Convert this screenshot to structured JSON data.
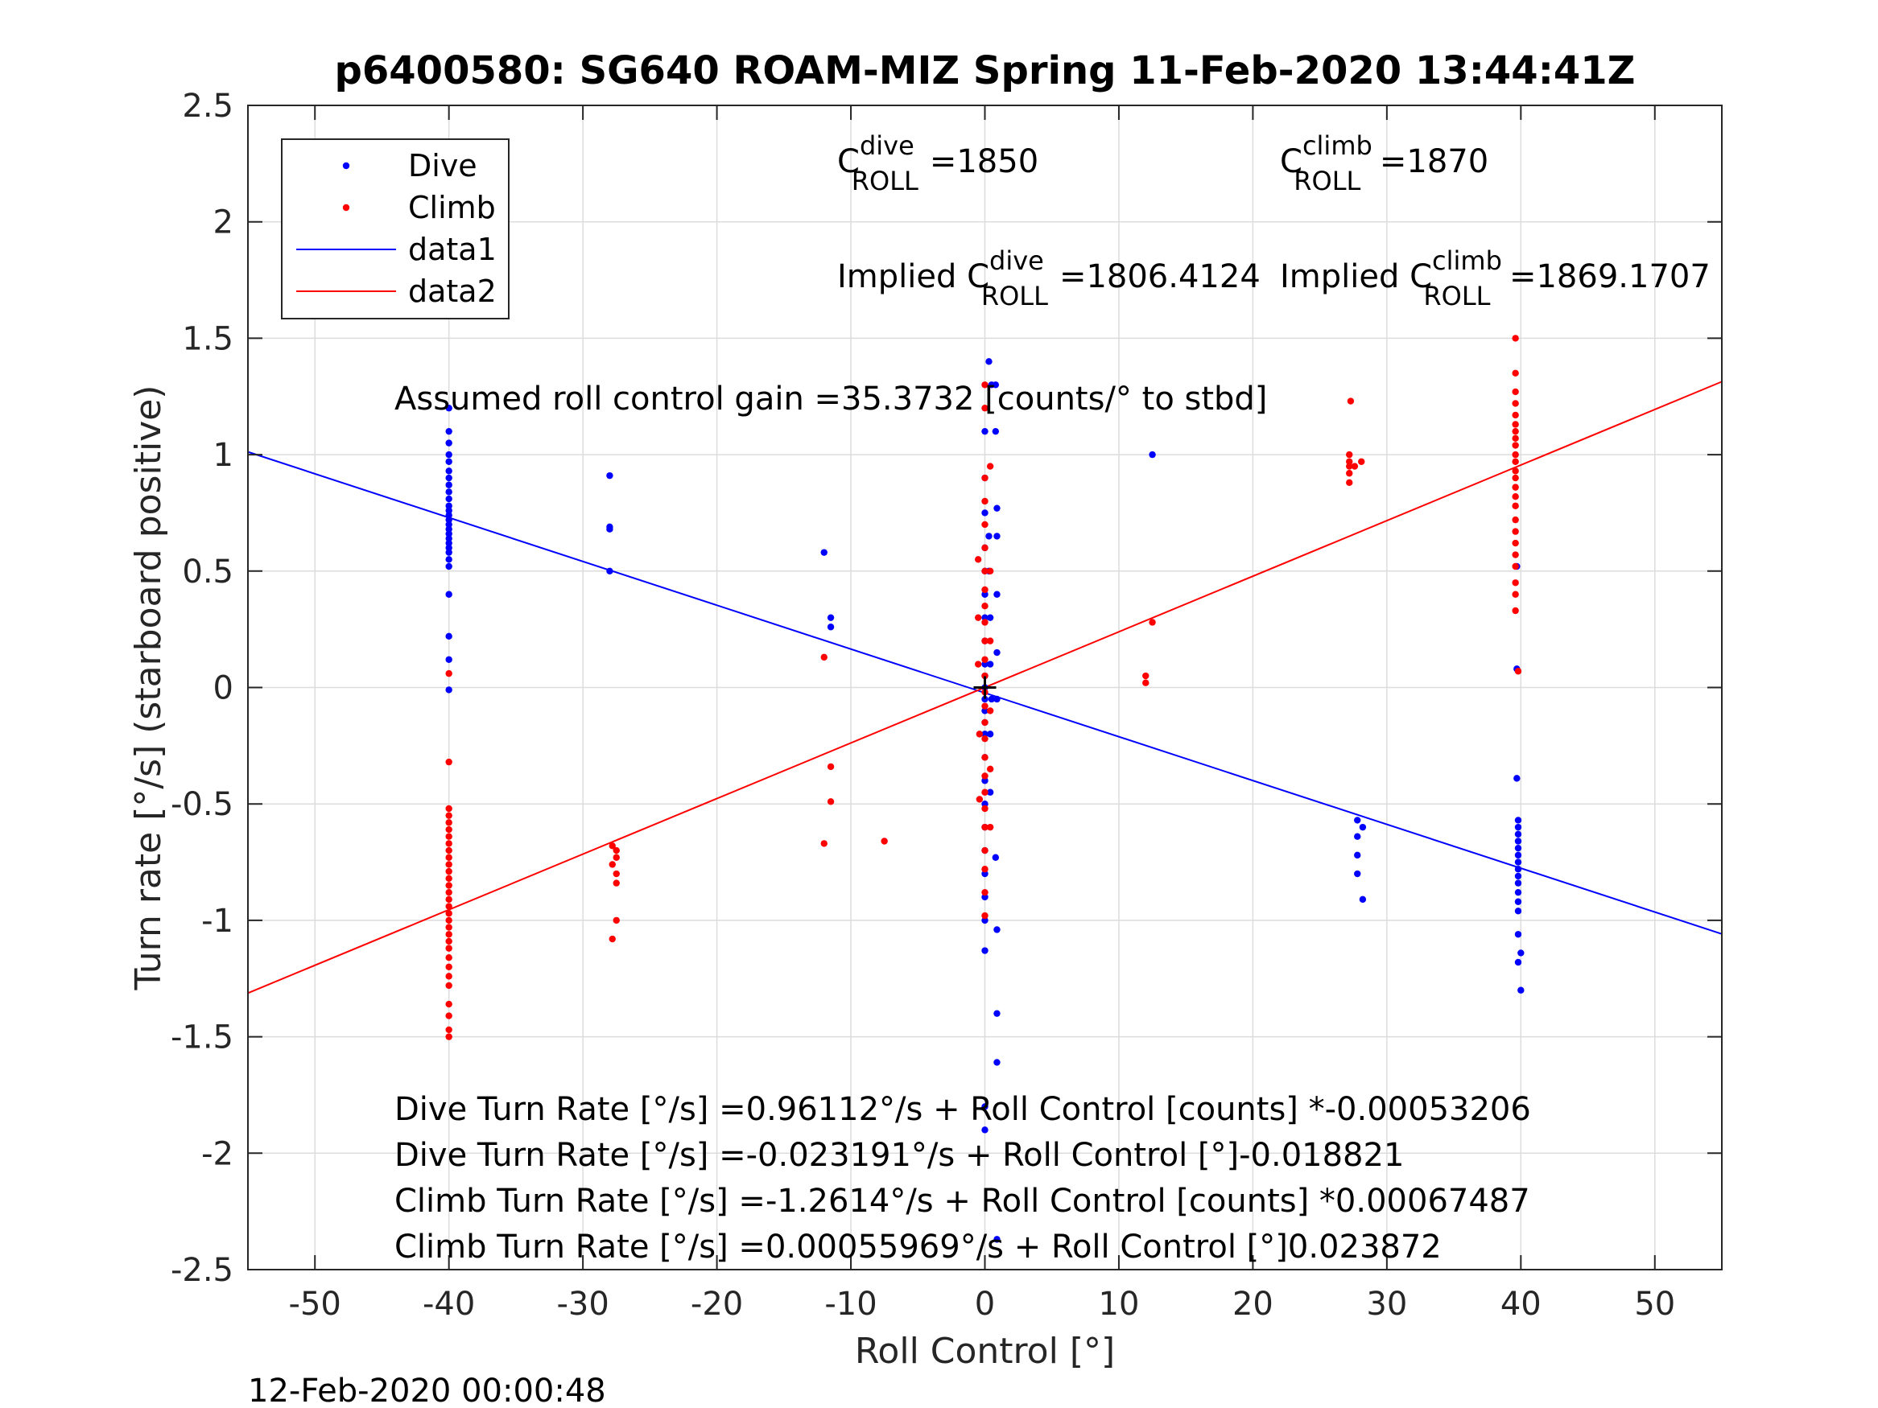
{
  "chart_data": {
    "type": "scatter",
    "title": "p6400580: SG640 ROAM-MIZ Spring 11-Feb-2020 13:44:41Z",
    "xlabel": "Roll Control [°]",
    "ylabel": "Turn rate [°/s] (starboard positive)",
    "xlim": [
      -55,
      55
    ],
    "ylim": [
      -2.5,
      2.5
    ],
    "xticks": [
      -50,
      -40,
      -30,
      -20,
      -10,
      0,
      10,
      20,
      30,
      40,
      50
    ],
    "xtick_labels": [
      "-50",
      "-40",
      "-30",
      "-20",
      "-10",
      "0",
      "10",
      "20",
      "30",
      "40",
      "50"
    ],
    "yticks": [
      2.5,
      2,
      1.5,
      1,
      0.5,
      0,
      -0.5,
      -1,
      -1.5,
      -2,
      -2.5
    ],
    "ytick_labels": [
      "2.5",
      "2",
      "1.5",
      "1",
      "0.5",
      "0",
      "-0.5",
      "-1",
      "-1.5",
      "-2",
      "-2.5"
    ],
    "grid": true,
    "legend_position": "top-left",
    "colors": {
      "dive": "#0000ff",
      "climb": "#ff0000",
      "axis": "#262626",
      "grid": "#dcdcdc",
      "marker": "#000000"
    },
    "series": [
      {
        "name": "Dive",
        "kind": "points",
        "color": "#0000ff",
        "points": [
          [
            -40,
            1.2
          ],
          [
            -40,
            1.1
          ],
          [
            -40,
            1.05
          ],
          [
            -40,
            1.0
          ],
          [
            -40,
            0.97
          ],
          [
            -40,
            0.93
          ],
          [
            -40,
            0.9
          ],
          [
            -40,
            0.87
          ],
          [
            -40,
            0.84
          ],
          [
            -40,
            0.81
          ],
          [
            -40,
            0.78
          ],
          [
            -40,
            0.76
          ],
          [
            -40,
            0.74
          ],
          [
            -40,
            0.72
          ],
          [
            -40,
            0.7
          ],
          [
            -40,
            0.68
          ],
          [
            -40,
            0.66
          ],
          [
            -40,
            0.64
          ],
          [
            -40,
            0.62
          ],
          [
            -40,
            0.6
          ],
          [
            -40,
            0.58
          ],
          [
            -40,
            0.55
          ],
          [
            -40,
            0.52
          ],
          [
            -40,
            0.4
          ],
          [
            -40,
            0.22
          ],
          [
            -40,
            0.12
          ],
          [
            -40,
            -0.01
          ],
          [
            -28,
            0.91
          ],
          [
            -28,
            0.69
          ],
          [
            -28,
            0.68
          ],
          [
            -28,
            0.5
          ],
          [
            -12,
            0.58
          ],
          [
            -11.5,
            0.3
          ],
          [
            -11.5,
            0.26
          ],
          [
            0,
            1.1
          ],
          [
            0,
            0.9
          ],
          [
            0,
            0.75
          ],
          [
            0,
            0.6
          ],
          [
            0,
            0.5
          ],
          [
            0,
            0.4
          ],
          [
            0,
            0.3
          ],
          [
            0,
            0.2
          ],
          [
            0,
            0.1
          ],
          [
            0,
            0.05
          ],
          [
            0,
            0.0
          ],
          [
            0,
            -0.05
          ],
          [
            0,
            -0.1
          ],
          [
            0,
            -0.15
          ],
          [
            0,
            -0.2
          ],
          [
            0,
            -0.3
          ],
          [
            0,
            -0.4
          ],
          [
            0,
            -0.5
          ],
          [
            0,
            -0.6
          ],
          [
            0,
            -0.7
          ],
          [
            0,
            -0.8
          ],
          [
            0,
            -0.9
          ],
          [
            0,
            -1.0
          ],
          [
            0,
            -1.13
          ],
          [
            0,
            -1.8
          ],
          [
            0,
            -1.9
          ],
          [
            0.3,
            1.4
          ],
          [
            0.5,
            1.3
          ],
          [
            0.3,
            0.65
          ],
          [
            0.3,
            0.5
          ],
          [
            0.4,
            0.3
          ],
          [
            0.4,
            0.1
          ],
          [
            0.4,
            -0.2
          ],
          [
            0.4,
            -0.45
          ],
          [
            0.5,
            -0.05
          ],
          [
            0.8,
            1.3
          ],
          [
            0.8,
            1.1
          ],
          [
            0.9,
            0.77
          ],
          [
            0.9,
            0.65
          ],
          [
            0.9,
            0.4
          ],
          [
            0.9,
            0.15
          ],
          [
            0.9,
            -0.05
          ],
          [
            0.8,
            -0.73
          ],
          [
            0.9,
            -1.04
          ],
          [
            0.9,
            -1.4
          ],
          [
            0.9,
            -1.61
          ],
          [
            0.9,
            -2.37
          ],
          [
            12.5,
            1.0
          ],
          [
            27.8,
            -0.57
          ],
          [
            27.8,
            -0.64
          ],
          [
            27.8,
            -0.72
          ],
          [
            27.8,
            -0.8
          ],
          [
            28.2,
            -0.6
          ],
          [
            28.2,
            -0.91
          ],
          [
            39.7,
            0.52
          ],
          [
            39.7,
            0.08
          ],
          [
            39.7,
            -0.39
          ],
          [
            39.8,
            -0.57
          ],
          [
            39.8,
            -0.6
          ],
          [
            39.8,
            -0.63
          ],
          [
            39.8,
            -0.66
          ],
          [
            39.8,
            -0.69
          ],
          [
            39.8,
            -0.72
          ],
          [
            39.8,
            -0.75
          ],
          [
            39.8,
            -0.78
          ],
          [
            39.8,
            -0.81
          ],
          [
            39.8,
            -0.84
          ],
          [
            39.8,
            -0.88
          ],
          [
            39.8,
            -0.92
          ],
          [
            39.8,
            -0.96
          ],
          [
            39.8,
            -1.06
          ],
          [
            39.8,
            -1.18
          ],
          [
            40,
            -1.14
          ],
          [
            40,
            -1.3
          ]
        ]
      },
      {
        "name": "Climb",
        "kind": "points",
        "color": "#ff0000",
        "points": [
          [
            -40,
            0.06
          ],
          [
            -40,
            -0.32
          ],
          [
            -40,
            -0.52
          ],
          [
            -40,
            -0.55
          ],
          [
            -40,
            -0.58
          ],
          [
            -40,
            -0.61
          ],
          [
            -40,
            -0.64
          ],
          [
            -40,
            -0.67
          ],
          [
            -40,
            -0.7
          ],
          [
            -40,
            -0.73
          ],
          [
            -40,
            -0.76
          ],
          [
            -40,
            -0.79
          ],
          [
            -40,
            -0.82
          ],
          [
            -40,
            -0.85
          ],
          [
            -40,
            -0.88
          ],
          [
            -40,
            -0.91
          ],
          [
            -40,
            -0.94
          ],
          [
            -40,
            -0.97
          ],
          [
            -40,
            -1.0
          ],
          [
            -40,
            -1.03
          ],
          [
            -40,
            -1.06
          ],
          [
            -40,
            -1.09
          ],
          [
            -40,
            -1.12
          ],
          [
            -40,
            -1.16
          ],
          [
            -40,
            -1.2
          ],
          [
            -40,
            -1.24
          ],
          [
            -40,
            -1.28
          ],
          [
            -40,
            -1.36
          ],
          [
            -40,
            -1.41
          ],
          [
            -40,
            -1.47
          ],
          [
            -40,
            -1.5
          ],
          [
            -27.8,
            -0.68
          ],
          [
            -27.5,
            -0.7
          ],
          [
            -27.5,
            -0.73
          ],
          [
            -27.8,
            -0.76
          ],
          [
            -27.5,
            -0.8
          ],
          [
            -27.5,
            -0.84
          ],
          [
            -27.5,
            -1.0
          ],
          [
            -27.8,
            -1.08
          ],
          [
            -12,
            0.13
          ],
          [
            -11.5,
            -0.34
          ],
          [
            -11.5,
            -0.49
          ],
          [
            -12,
            -0.67
          ],
          [
            -7.5,
            -0.66
          ],
          [
            0,
            1.3
          ],
          [
            0,
            1.2
          ],
          [
            0,
            0.9
          ],
          [
            0,
            0.8
          ],
          [
            0,
            0.7
          ],
          [
            0,
            0.6
          ],
          [
            0,
            0.5
          ],
          [
            0,
            0.42
          ],
          [
            0,
            0.35
          ],
          [
            0,
            0.28
          ],
          [
            0,
            0.2
          ],
          [
            0,
            0.12
          ],
          [
            0,
            0.05
          ],
          [
            0,
            -0.02
          ],
          [
            0,
            -0.08
          ],
          [
            0,
            -0.15
          ],
          [
            0,
            -0.22
          ],
          [
            0,
            -0.3
          ],
          [
            0,
            -0.38
          ],
          [
            0,
            -0.45
          ],
          [
            0,
            -0.52
          ],
          [
            0,
            -0.6
          ],
          [
            0,
            -0.7
          ],
          [
            0,
            -0.78
          ],
          [
            0,
            -0.88
          ],
          [
            0,
            -0.98
          ],
          [
            -0.5,
            0.55
          ],
          [
            -0.5,
            0.3
          ],
          [
            -0.5,
            0.1
          ],
          [
            -0.4,
            -0.2
          ],
          [
            -0.4,
            -0.48
          ],
          [
            0.4,
            0.95
          ],
          [
            0.4,
            0.5
          ],
          [
            0.4,
            0.2
          ],
          [
            0.4,
            -0.1
          ],
          [
            0.4,
            -0.35
          ],
          [
            0.4,
            -0.6
          ],
          [
            12,
            0.02
          ],
          [
            12,
            0.05
          ],
          [
            12.5,
            0.28
          ],
          [
            27.3,
            1.23
          ],
          [
            27.2,
            1.0
          ],
          [
            27.2,
            0.97
          ],
          [
            27.2,
            0.95
          ],
          [
            27.2,
            0.92
          ],
          [
            27.2,
            0.88
          ],
          [
            27.6,
            0.95
          ],
          [
            28.1,
            0.97
          ],
          [
            39.6,
            1.5
          ],
          [
            39.6,
            1.35
          ],
          [
            39.6,
            1.27
          ],
          [
            39.6,
            1.22
          ],
          [
            39.6,
            1.17
          ],
          [
            39.6,
            1.13
          ],
          [
            39.6,
            1.1
          ],
          [
            39.6,
            1.07
          ],
          [
            39.6,
            1.04
          ],
          [
            39.6,
            1.0
          ],
          [
            39.6,
            0.97
          ],
          [
            39.6,
            0.93
          ],
          [
            39.6,
            0.9
          ],
          [
            39.6,
            0.86
          ],
          [
            39.6,
            0.82
          ],
          [
            39.6,
            0.78
          ],
          [
            39.6,
            0.72
          ],
          [
            39.6,
            0.67
          ],
          [
            39.6,
            0.62
          ],
          [
            39.6,
            0.57
          ],
          [
            39.6,
            0.52
          ],
          [
            39.6,
            0.45
          ],
          [
            39.6,
            0.4
          ],
          [
            39.6,
            0.33
          ],
          [
            39.8,
            0.07
          ]
        ]
      },
      {
        "name": "data1",
        "kind": "line",
        "color": "#0000ff",
        "slope": -0.018821,
        "intercept": -0.023191
      },
      {
        "name": "data2",
        "kind": "line",
        "color": "#ff0000",
        "slope": 0.023872,
        "intercept": 0.00055969
      }
    ],
    "legend": [
      "Dive",
      "Climb",
      "data1",
      "data2"
    ],
    "annotations": {
      "c_dive": {
        "prefix": "C",
        "sup": "dive",
        "sub": "ROLL",
        "value": "=1850"
      },
      "c_climb": {
        "prefix": "C",
        "sup": "climb",
        "sub": "ROLL",
        "value": "=1870"
      },
      "implied_dive": {
        "prefix": "Implied C",
        "sup": "dive",
        "sub": "ROLL",
        "value": "=1806.4124"
      },
      "implied_climb": {
        "prefix": "Implied C",
        "sup": "climb",
        "sub": "ROLL",
        "value": "=1869.1707"
      },
      "gain": "Assumed roll control gain =35.3732 [counts/° to stbd]",
      "equations": [
        "Dive Turn Rate [°/s] =0.96112°/s + Roll Control [counts] *-0.00053206",
        "Dive Turn Rate [°/s] =-0.023191°/s + Roll Control [°]-0.018821",
        "Climb Turn Rate [°/s] =-1.2614°/s + Roll Control [counts] *0.00067487",
        "Climb Turn Rate [°/s] =0.00055969°/s + Roll Control [°]0.023872"
      ]
    },
    "center_marker": [
      0,
      0
    ]
  },
  "timestamp": "12-Feb-2020 00:00:48"
}
